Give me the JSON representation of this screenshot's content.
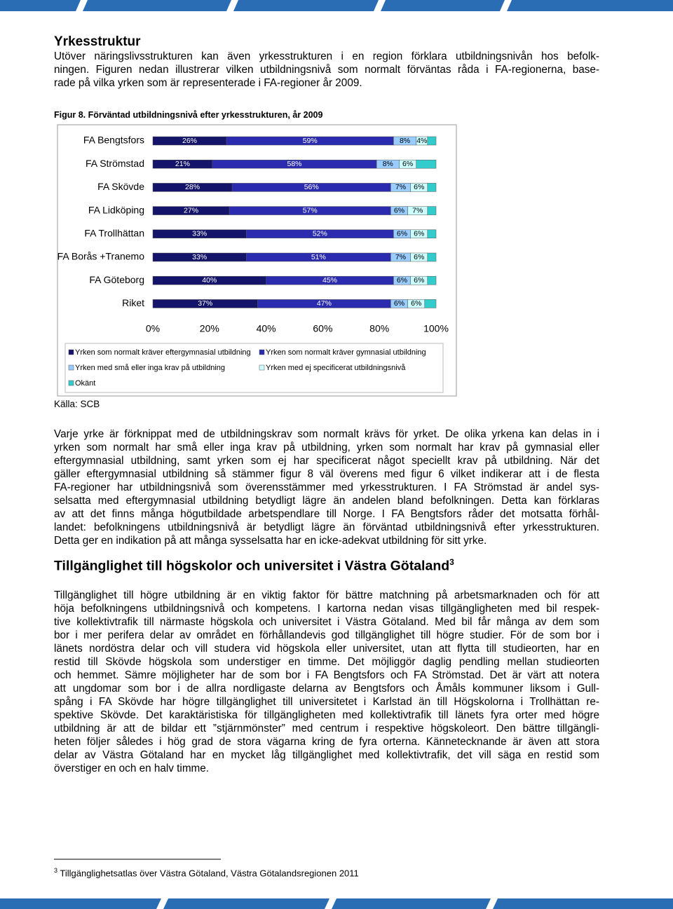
{
  "doc": {
    "title": "Yrkesstruktur",
    "intro": [
      "Utöver näringslivsstrukturen kan även yrkesstrukturen i en region förklara utbildningsnivån hos befolk-",
      "ningen. Figuren nedan illustrerar vilken utbildningsnivå som normalt förväntas råda i FA-regionerna, base-",
      "rade på vilka yrken som är representerade i FA-regioner år 2009."
    ]
  },
  "figure": {
    "caption": "Figur 8. Förväntad utbildningsnivå efter yrkesstrukturen, år 2009",
    "source": "Källa: SCB"
  },
  "chart_data": {
    "type": "stacked-barh",
    "categories": [
      "FA Bengtsfors",
      "FA Strömstad",
      "FA Skövde",
      "FA Lidköping",
      "FA Trollhättan",
      "FA Borås +Tranemo",
      "FA Göteborg",
      "Riket"
    ],
    "xlim": [
      0,
      100
    ],
    "xticks": [
      {
        "value": 0,
        "label": "0%"
      },
      {
        "value": 20,
        "label": "20%"
      },
      {
        "value": 40,
        "label": "40%"
      },
      {
        "value": 60,
        "label": "60%"
      },
      {
        "value": 80,
        "label": "80%"
      },
      {
        "value": 100,
        "label": "100%"
      }
    ],
    "series": [
      {
        "name": "Yrken som normalt kräver eftergymnasial utbildning",
        "color": "#14146a",
        "label_color": "#ffffff",
        "values": [
          26,
          21,
          28,
          27,
          33,
          33,
          40,
          37
        ],
        "value_labels": [
          "26%",
          "21%",
          "28%",
          "27%",
          "33%",
          "33%",
          "40%",
          "37%"
        ]
      },
      {
        "name": "Yrken som normalt kräver gymnasial utbildning",
        "color": "#2b2bb0",
        "label_color": "#ffffff",
        "values": [
          59,
          58,
          56,
          57,
          52,
          51,
          45,
          47
        ],
        "value_labels": [
          "59%",
          "58%",
          "56%",
          "57%",
          "52%",
          "51%",
          "45%",
          "47%"
        ]
      },
      {
        "name": "Yrken med små eller inga krav på utbildning",
        "color": "#99ccff",
        "label_color": "#000000",
        "values": [
          8,
          8,
          7,
          6,
          6,
          7,
          6,
          6
        ],
        "value_labels": [
          "8%",
          "8%",
          "7%",
          "6%",
          "6%",
          "7%",
          "6%",
          "6%"
        ]
      },
      {
        "name": "Yrken med ej specificerat utbildningsnivå",
        "color": "#ccffff",
        "label_color": "#000000",
        "values": [
          4,
          6,
          6,
          7,
          6,
          6,
          6,
          6
        ],
        "value_labels": [
          "4%",
          "6%",
          "6%",
          "7%",
          "6%",
          "6%",
          "6%",
          "6%"
        ]
      },
      {
        "name": "Okänt",
        "color": "#33cccc",
        "values": [
          3,
          7,
          3,
          3,
          3,
          3,
          3,
          4
        ]
      }
    ]
  },
  "body": [
    "Varje yrke är förknippat med de utbildningskrav som normalt krävs för yrket. De olika yrkena kan delas in i",
    "yrken som normalt har små eller inga krav på utbildning, yrken som normalt har krav på gymnasial eller",
    "eftergymnasial utbildning, samt yrken som ej har specificerat något speciellt krav på utbildning. När det",
    "gäller eftergymnasial utbildning så stämmer figur 8 väl överens med figur 6 vilket indikerar att i de flesta",
    "FA-regioner har utbildningsnivå som överensstämmer med yrkesstrukturen. I FA Strömstad är andel sys-",
    "selsatta med eftergymnasial utbildning betydligt lägre än andelen bland befolkningen. Detta kan förklaras",
    "av att det finns många högutbildade arbetspendlare till Norge. I FA Bengtsfors råder det motsatta förhål-",
    "landet: befolkningens utbildningsnivå är betydligt lägre än förväntad utbildningsnivå efter yrkesstrukturen.",
    "Detta ger en indikation på att många sysselsatta har en icke-adekvat utbildning för sitt yrke."
  ],
  "heading": {
    "text": "Tillgänglighet till högskolor och universitet i Västra Götaland",
    "note_ref": "3"
  },
  "body2": [
    "Tillgänglighet till högre utbildning är en viktig faktor för bättre matchning på arbetsmarknaden och för att",
    "höja befolkningens utbildningsnivå och kompetens. I kartorna nedan visas tillgängligheten med bil respek-",
    "tive kollektivtrafik till närmaste högskola och universitet i Västra Götaland. Med bil får många av dem som",
    "bor i mer perifera delar av området en förhållandevis god tillgänglighet till högre studier. För de som bor i",
    "länets nordöstra delar och vill studera vid högskola eller universitet, utan att flytta till studieorten, har en",
    "restid till Skövde högskola som understiger en timme. Det möjliggör daglig pendling mellan studieorten",
    "och hemmet. Sämre möjligheter har de som bor i FA Bengtsfors och FA Strömstad. Det är värt att notera",
    "att ungdomar som bor i de allra nordligaste delarna av Bengtsfors och Åmåls kommuner liksom i Gull-",
    "spång i FA Skövde har högre tillgänglighet till universitetet i Karlstad än till Högskolorna i Trollhättan re-",
    "spektive Skövde. Det karaktäristiska för tillgängligheten med kollektivtrafik till länets fyra orter med högre",
    "utbildning är att de bildar ett ”stjärnmönster” med centrum i respektive högskoleort. Den bättre tillgängli-",
    "heten följer således i hög grad de stora vägarna kring de fyra orterna. Kännetecknande är även att stora",
    "delar av Västra Götaland har en mycket låg tillgänglighet med kollektivtrafik, det vill säga en restid som",
    "överstiger en och en halv timme."
  ],
  "footnote": {
    "ref": "3",
    "text": "Tillgänglighetsatlas över Västra Götaland, Västra Götalandsregionen 2011"
  }
}
